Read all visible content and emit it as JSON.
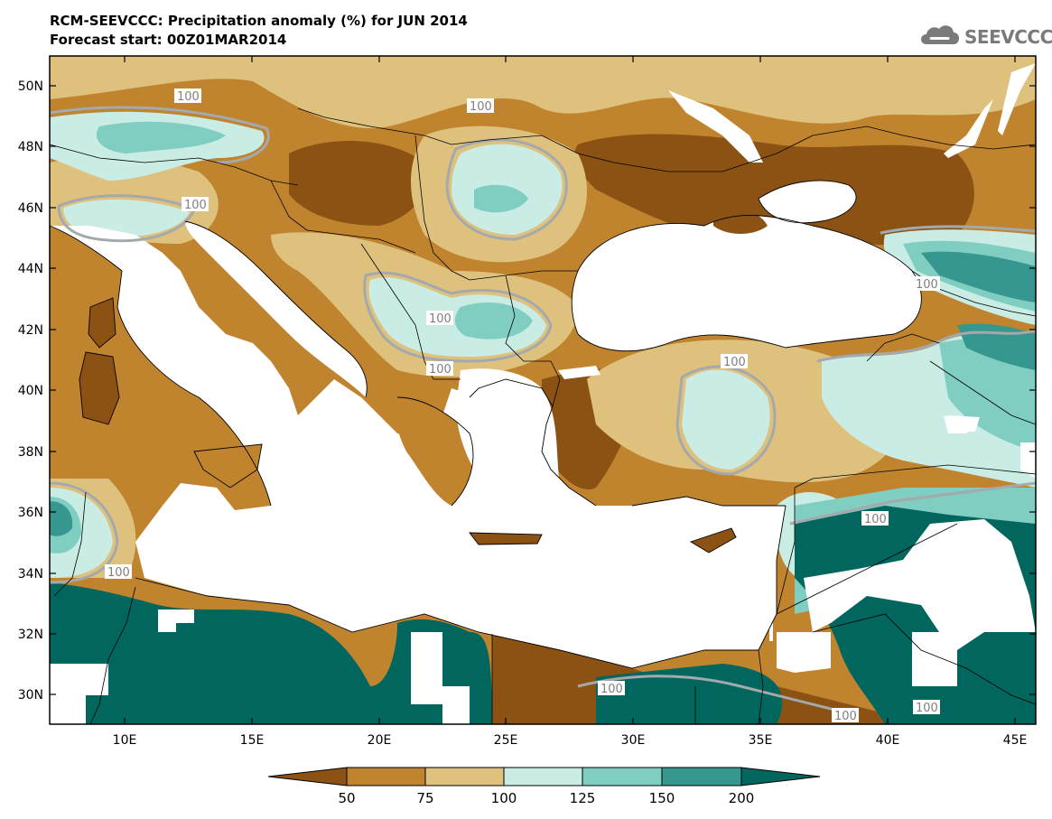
{
  "header": {
    "title": "RCM-SEEVCCC: Precipitation anomaly (%) for JUN 2014",
    "subtitle": "Forecast start: 00Z01MAR2014"
  },
  "logo": {
    "text": "SEEVCCC",
    "icon": "cloud-icon",
    "color": "#7a7a7a"
  },
  "map": {
    "lat_labels": [
      "50N",
      "48N",
      "46N",
      "44N",
      "42N",
      "40N",
      "38N",
      "36N",
      "34N",
      "32N",
      "30N"
    ],
    "lon_labels": [
      "10E",
      "15E",
      "20E",
      "25E",
      "30E",
      "35E",
      "40E",
      "45E"
    ],
    "contour_labels": [
      "100",
      "100",
      "100",
      "100",
      "100",
      "100",
      "100",
      "100",
      "100",
      "100",
      "100",
      "100"
    ]
  },
  "colorbar": {
    "labels": [
      "50",
      "75",
      "100",
      "125",
      "150",
      "200"
    ],
    "colors": [
      "#8c5214",
      "#c0842f",
      "#dfc17e",
      "#c9ece5",
      "#80cdc1",
      "#35978f",
      "#01665e"
    ]
  }
}
